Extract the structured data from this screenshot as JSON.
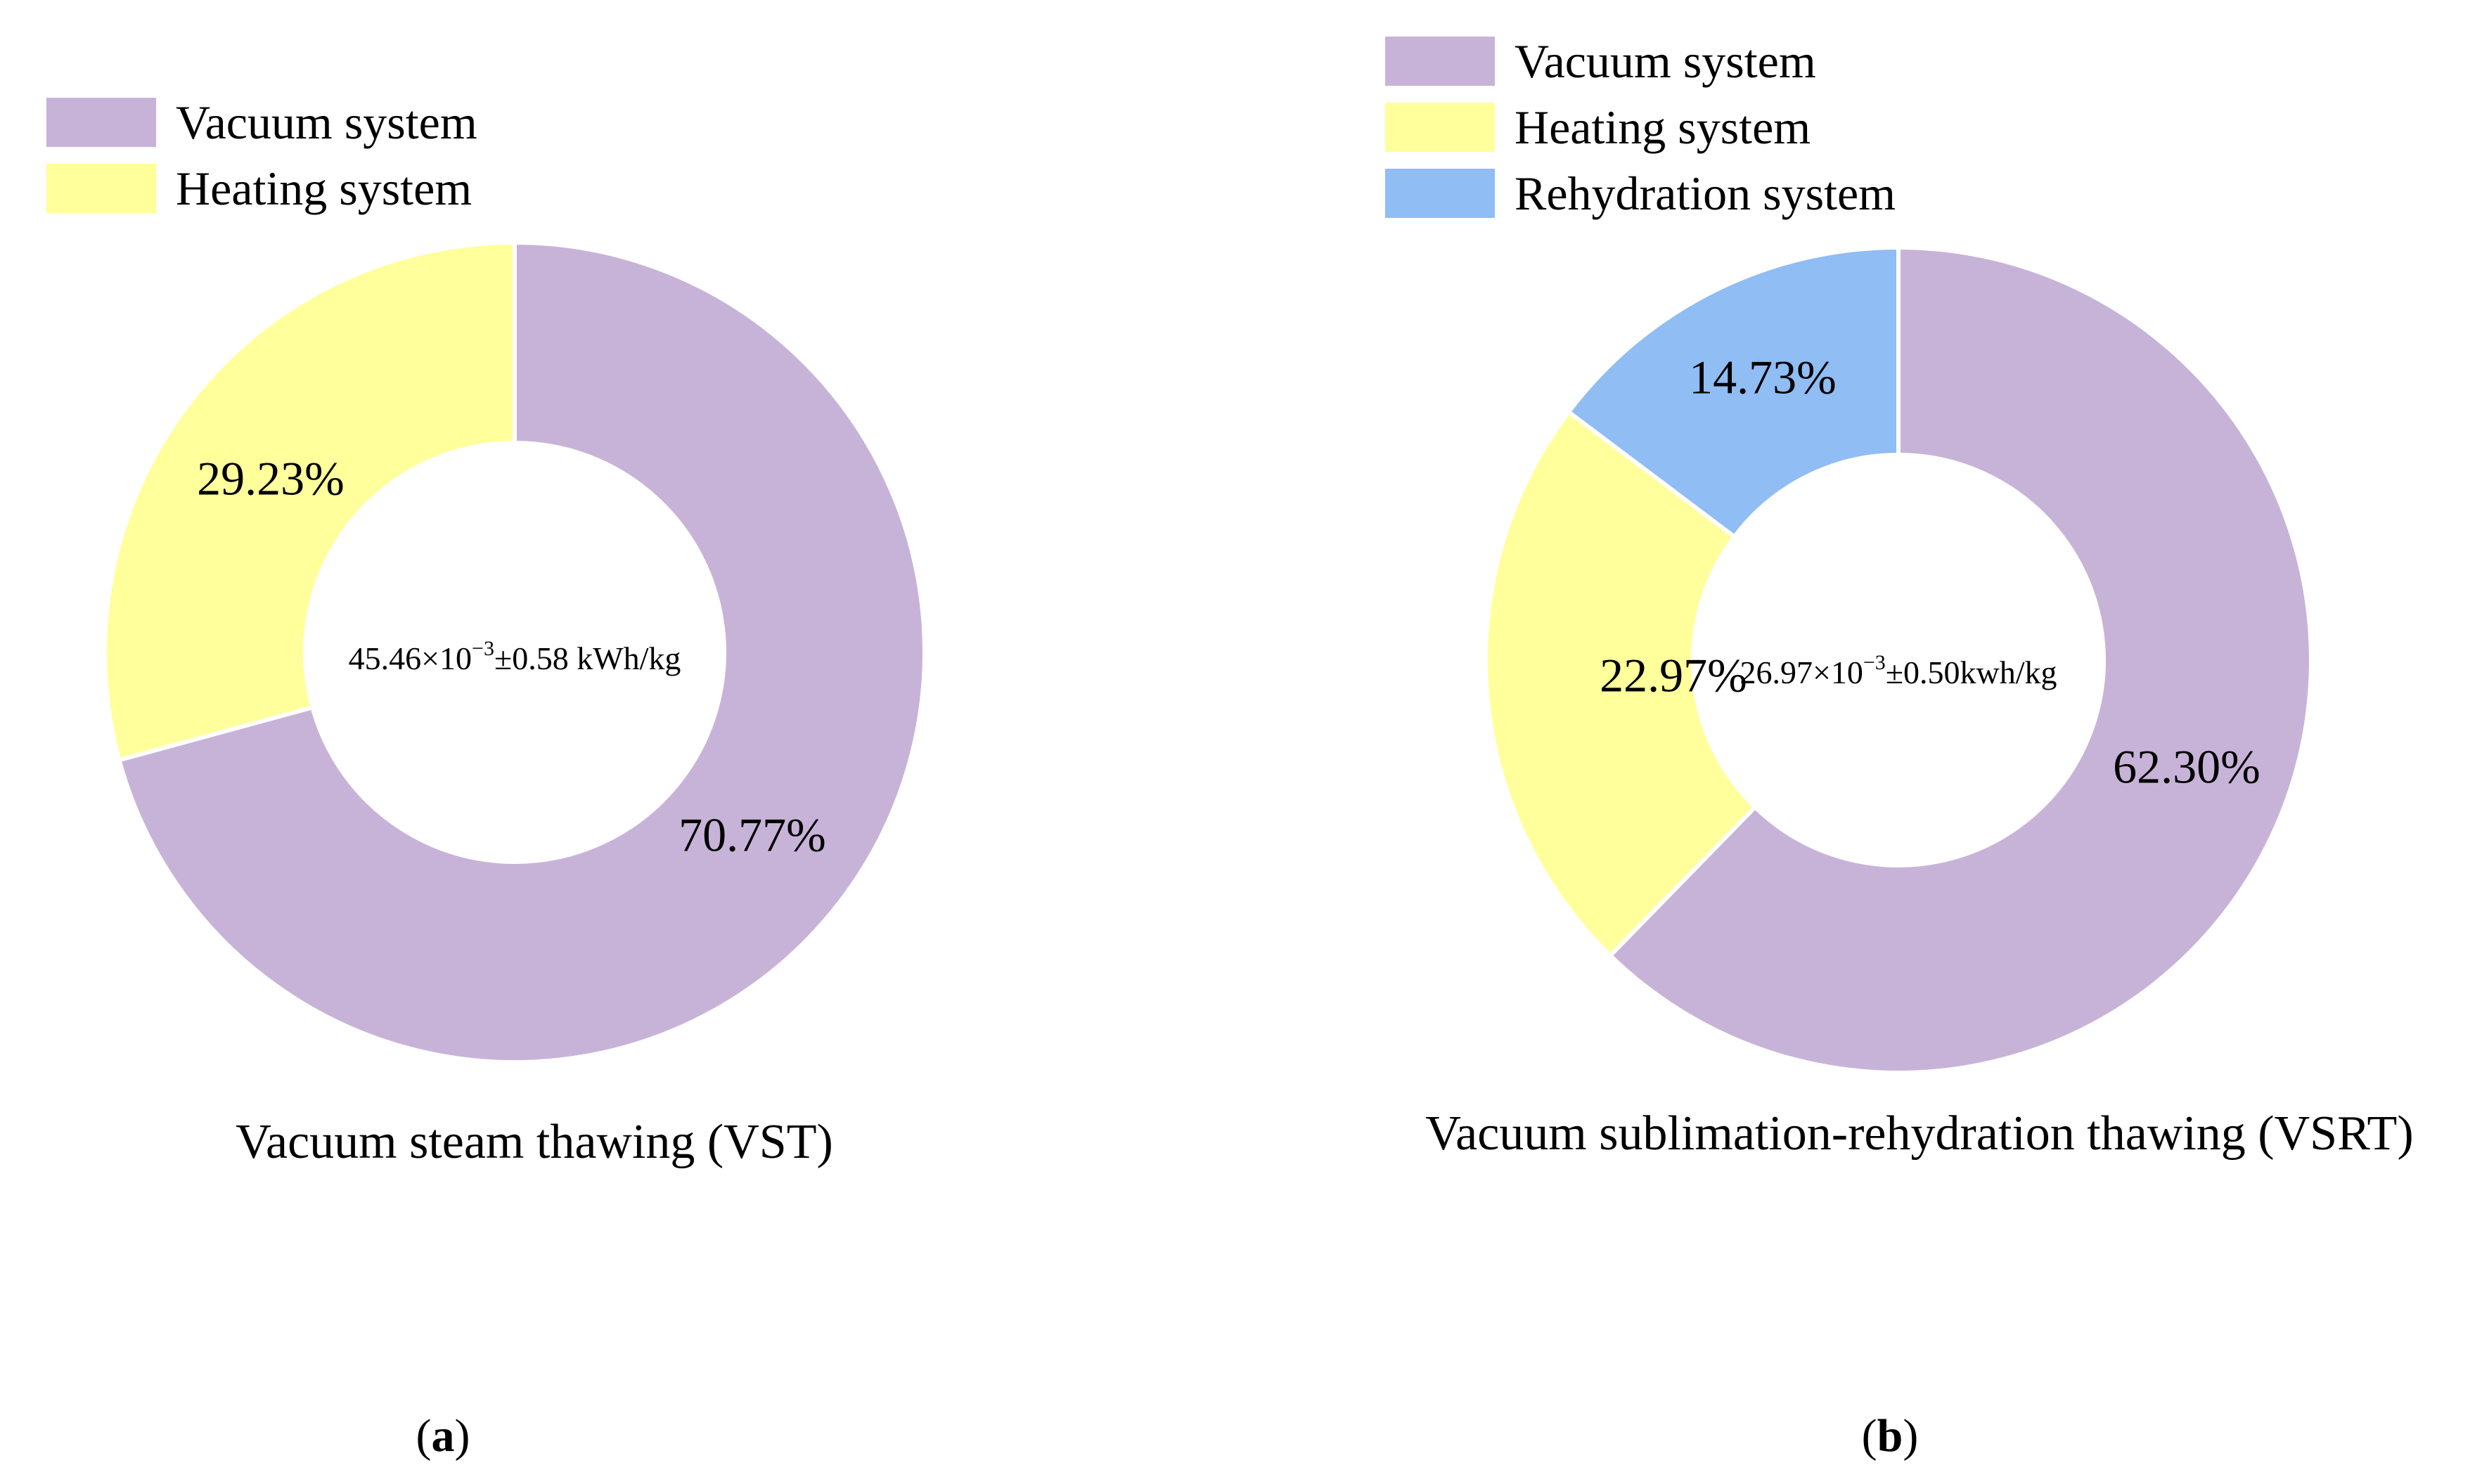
{
  "chart_data": [
    {
      "type": "pie",
      "variant": "donut",
      "title": "Vacuum steam thawing (VST)",
      "panel_label": "a",
      "center_text": {
        "prefix": "45.46×10",
        "exponent": "−3",
        "suffix": "±0.58 kWh/kg"
      },
      "legend": [
        "Vacuum system",
        "Heating system"
      ],
      "legend_placement": "top-left",
      "slices": [
        {
          "name": "Vacuum system",
          "value": 70.77,
          "label": "70.77%",
          "color": "#c8b3d8"
        },
        {
          "name": "Heating system",
          "value": 29.23,
          "label": "29.23%",
          "color": "#ffff9c"
        }
      ]
    },
    {
      "type": "pie",
      "variant": "donut",
      "title": "Vacuum sublimation-rehydration thawing (VSRT)",
      "panel_label": "b",
      "center_text": {
        "prefix": "26.97×10",
        "exponent": "−3",
        "suffix": "±0.50kwh/kg"
      },
      "legend": [
        "Vacuum system",
        "Heating system",
        "Rehydration system"
      ],
      "legend_placement": "top-left",
      "slices": [
        {
          "name": "Vacuum system",
          "value": 62.3,
          "label": "62.30%",
          "color": "#c8b3d8"
        },
        {
          "name": "Heating system",
          "value": 22.97,
          "label": "22.97%",
          "color": "#ffff9c"
        },
        {
          "name": "Rehydration system",
          "value": 14.73,
          "label": "14.73%",
          "color": "#8fbdf4"
        }
      ]
    }
  ]
}
